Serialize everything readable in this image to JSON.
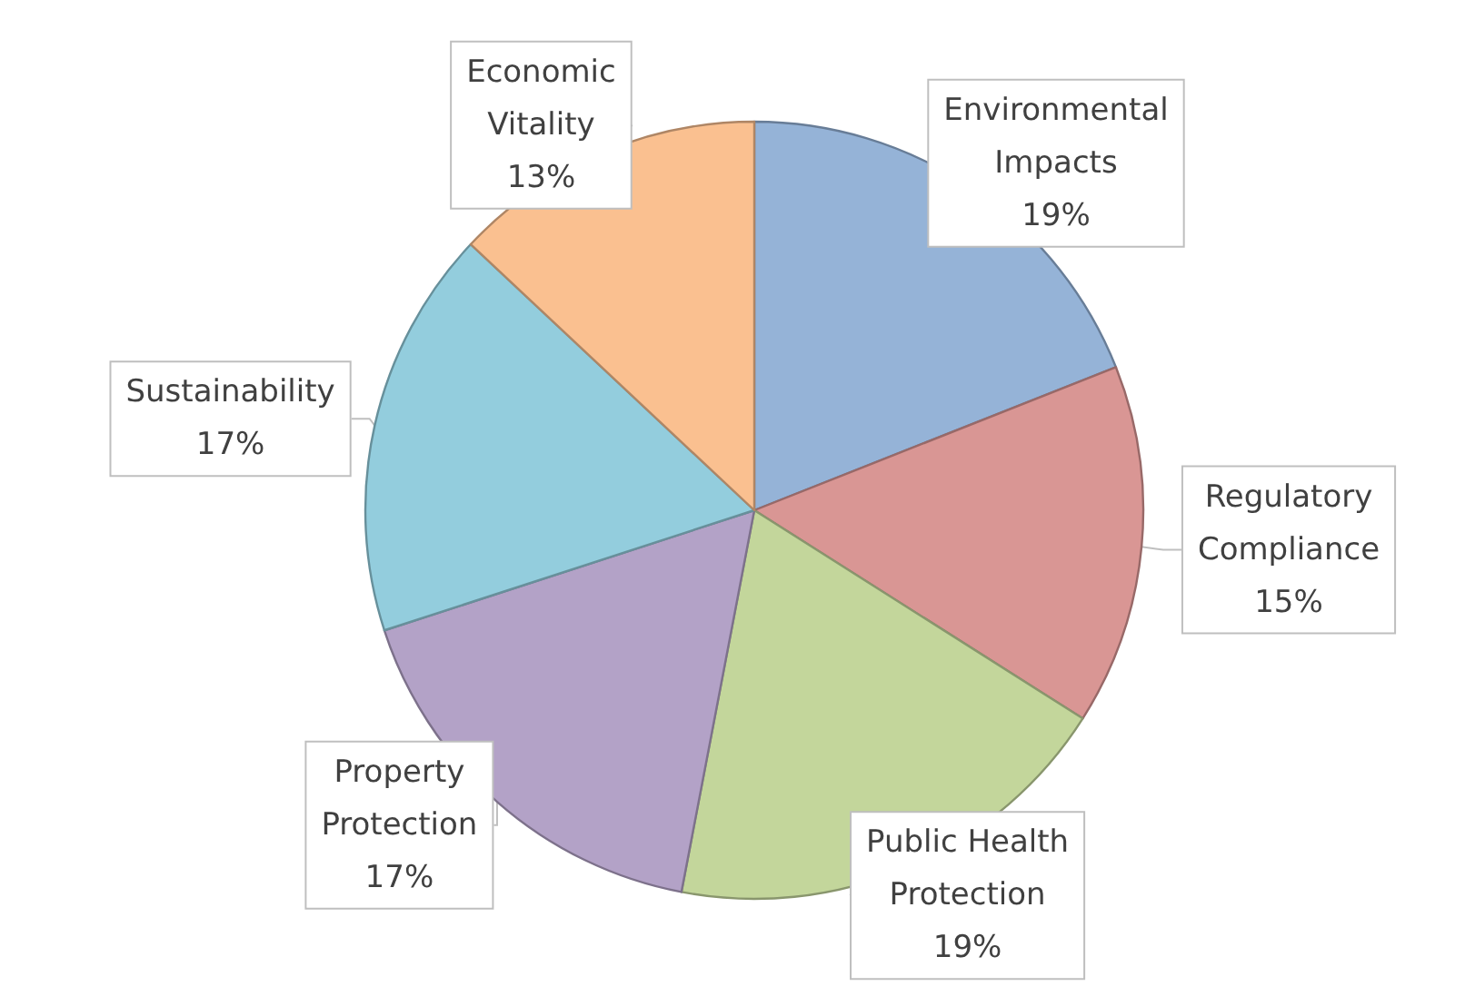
{
  "chart_data": {
    "type": "pie",
    "categories": [
      "Environmental Impacts",
      "Regulatory Compliance",
      "Public Health Protection",
      "Property Protection",
      "Sustainability",
      "Economic Vitality"
    ],
    "values": [
      19,
      15,
      19,
      17,
      17,
      13
    ],
    "value_labels": [
      "19%",
      "15%",
      "19%",
      "17%",
      "17%",
      "13%"
    ],
    "colors": [
      "#95b3d7",
      "#d99694",
      "#c3d69b",
      "#b3a2c7",
      "#93cddd",
      "#fac090"
    ],
    "legend": false
  }
}
